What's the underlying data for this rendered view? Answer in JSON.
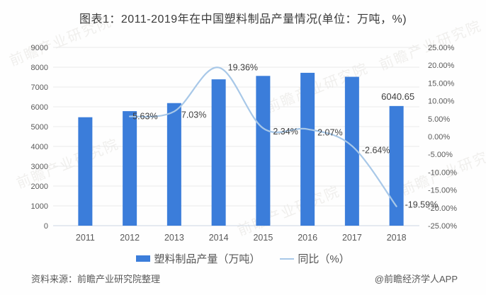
{
  "title": "图表1：2011-2019年在中国塑料制品产量情况(单位：万吨，%)",
  "watermark": "前瞻产业研究院",
  "chart_data": {
    "type": "bar",
    "subtype": "bar-line-combo",
    "categories": [
      "2011",
      "2012",
      "2013",
      "2014",
      "2015",
      "2016",
      "2017",
      "2018"
    ],
    "series": [
      {
        "name": "塑料制品产量（万吨）",
        "type": "bar",
        "axis": "left",
        "color": "#3b7dda",
        "values": [
          5474.3,
          5781.9,
          6188.7,
          7387.8,
          7560.8,
          7717.2,
          7515.5,
          6040.65
        ],
        "labels": [
          null,
          null,
          null,
          null,
          null,
          null,
          null,
          "6040.65"
        ]
      },
      {
        "name": "同比（%）",
        "type": "line",
        "axis": "right",
        "color": "#a8c8e8",
        "values": [
          null,
          5.63,
          7.03,
          19.36,
          2.34,
          2.07,
          -2.64,
          -19.59
        ],
        "labels": [
          null,
          "5.63%",
          "7.03%",
          "19.36%",
          "2.34%",
          "2.07%",
          "-2.64%",
          "-19.59%"
        ]
      }
    ],
    "left_axis": {
      "min": 0,
      "max": 9000,
      "step": 1000,
      "ticks": [
        "9000",
        "8000",
        "7000",
        "6000",
        "5000",
        "4000",
        "3000",
        "2000",
        "1000",
        "0"
      ]
    },
    "right_axis": {
      "min": -25,
      "max": 25,
      "step": 5,
      "ticks": [
        "25.00%",
        "20.00%",
        "15.00%",
        "10.00%",
        "5.00%",
        "0.00%",
        "-5.00%",
        "-10.00%",
        "-15.00%",
        "-20.00%",
        "-25.00%"
      ]
    },
    "grid": true,
    "legend_position": "bottom",
    "colors": {
      "grid": "#e9e9e9",
      "baseline": "#ccd6e2",
      "tick_text": "#595959",
      "data_label_text": "#404040"
    }
  },
  "footer": {
    "source": "资料来源：前瞻产业研究院整理",
    "brand": "@前瞻经济学人APP"
  }
}
